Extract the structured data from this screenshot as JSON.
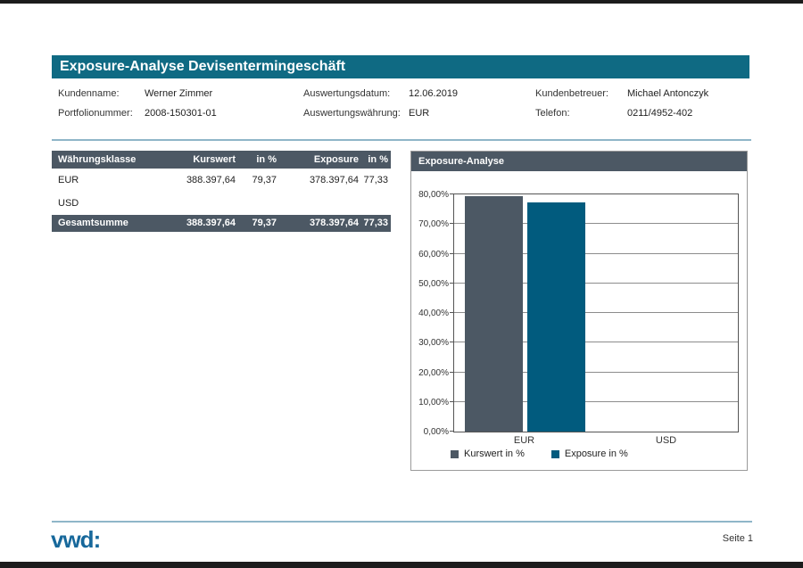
{
  "page": {
    "title": "Exposure-Analyse Devisentermingeschäft",
    "footer": {
      "logo": "vwd:",
      "page_label": "Seite 1"
    }
  },
  "info": {
    "fields": [
      {
        "label": "Kundenname:",
        "value": "Werner Zimmer"
      },
      {
        "label": "Portfolionummer:",
        "value": "2008-150301-01"
      },
      {
        "label": "Auswertungsdatum:",
        "value": "12.06.2019"
      },
      {
        "label": "Auswertungswährung:",
        "value": "EUR"
      },
      {
        "label": "Kundenbetreuer:",
        "value": "Michael Antonczyk"
      },
      {
        "label": "Telefon:",
        "value": "0211/4952-402"
      }
    ]
  },
  "table": {
    "headers": [
      "Währungsklasse",
      "Kurswert",
      "in %",
      "Exposure",
      "in %"
    ],
    "rows": [
      {
        "cells": [
          "EUR",
          "388.397,64",
          "79,37",
          "378.397,64",
          "77,33"
        ]
      },
      {
        "cells": [
          "USD",
          "",
          "",
          "",
          ""
        ]
      }
    ],
    "total": {
      "cells": [
        "Gesamtsumme",
        "388.397,64",
        "79,37",
        "378.397,64",
        "77,33"
      ]
    }
  },
  "chart_data": {
    "type": "bar",
    "title": "Exposure-Analyse",
    "categories": [
      "EUR",
      "USD"
    ],
    "series": [
      {
        "name": "Kurswert in %",
        "color": "#4c5864",
        "values": [
          79.37,
          0
        ]
      },
      {
        "name": "Exposure in %",
        "color": "#015b7e",
        "values": [
          77.33,
          0
        ]
      }
    ],
    "ylim": [
      0,
      80
    ],
    "ytick_labels": [
      "0,00%",
      "10,00%",
      "20,00%",
      "30,00%",
      "40,00%",
      "50,00%",
      "60,00%",
      "70,00%",
      "80,00%"
    ],
    "grid": true,
    "legend_position": "bottom"
  },
  "colors": {
    "header_teal": "#0f6a83",
    "slate": "#4c5864",
    "bar_teal": "#015b7e",
    "logo_blue": "#17689b",
    "rule_blue": "#8fb6c8"
  }
}
